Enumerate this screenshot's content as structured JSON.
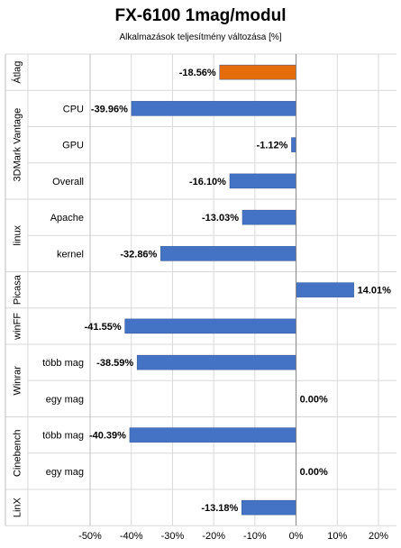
{
  "chart_data": {
    "type": "bar",
    "orientation": "horizontal",
    "title": "FX-6100 1mag/modul",
    "subtitle": "Alkalmazások teljesítmény változása  [%]",
    "xlim": [
      -50,
      20
    ],
    "xticks": [
      "-50%",
      "-40%",
      "-30%",
      "-20%",
      "-10%",
      "0%",
      "10%",
      "20%"
    ],
    "grid": true,
    "legend": "none",
    "groups": [
      {
        "name": "Átlag",
        "rows": [
          {
            "label": "",
            "value": -18.56,
            "value_label": "-18.56%",
            "color": "#E46C0A"
          }
        ]
      },
      {
        "name": "3DMark Vantage",
        "rows": [
          {
            "label": "CPU",
            "value": -39.96,
            "value_label": "-39.96%",
            "color": "#4472C4"
          },
          {
            "label": "GPU",
            "value": -1.12,
            "value_label": "-1.12%",
            "color": "#4472C4"
          },
          {
            "label": "Overall",
            "value": -16.1,
            "value_label": "-16.10%",
            "color": "#4472C4"
          }
        ]
      },
      {
        "name": "linux",
        "rows": [
          {
            "label": "Apache",
            "value": -13.03,
            "value_label": "-13.03%",
            "color": "#4472C4"
          },
          {
            "label": "kernel",
            "value": -32.86,
            "value_label": "-32.86%",
            "color": "#4472C4"
          }
        ]
      },
      {
        "name": "Picasa",
        "rows": [
          {
            "label": "",
            "value": 14.01,
            "value_label": "14.01%",
            "color": "#4472C4"
          }
        ]
      },
      {
        "name": "winFF",
        "rows": [
          {
            "label": "",
            "value": -41.55,
            "value_label": "-41.55%",
            "color": "#4472C4"
          }
        ]
      },
      {
        "name": "Winrar",
        "rows": [
          {
            "label": "több mag",
            "value": -38.59,
            "value_label": "-38.59%",
            "color": "#4472C4"
          },
          {
            "label": "egy mag",
            "value": 0.0,
            "value_label": "0.00%",
            "color": "#4472C4"
          }
        ]
      },
      {
        "name": "Cinebench",
        "rows": [
          {
            "label": "több mag",
            "value": -40.39,
            "value_label": "-40.39%",
            "color": "#4472C4"
          },
          {
            "label": "egy mag",
            "value": 0.0,
            "value_label": "0.00%",
            "color": "#4472C4"
          }
        ]
      },
      {
        "name": "LinX",
        "rows": [
          {
            "label": "",
            "value": -13.18,
            "value_label": "-13.18%",
            "color": "#4472C4"
          }
        ]
      }
    ]
  }
}
